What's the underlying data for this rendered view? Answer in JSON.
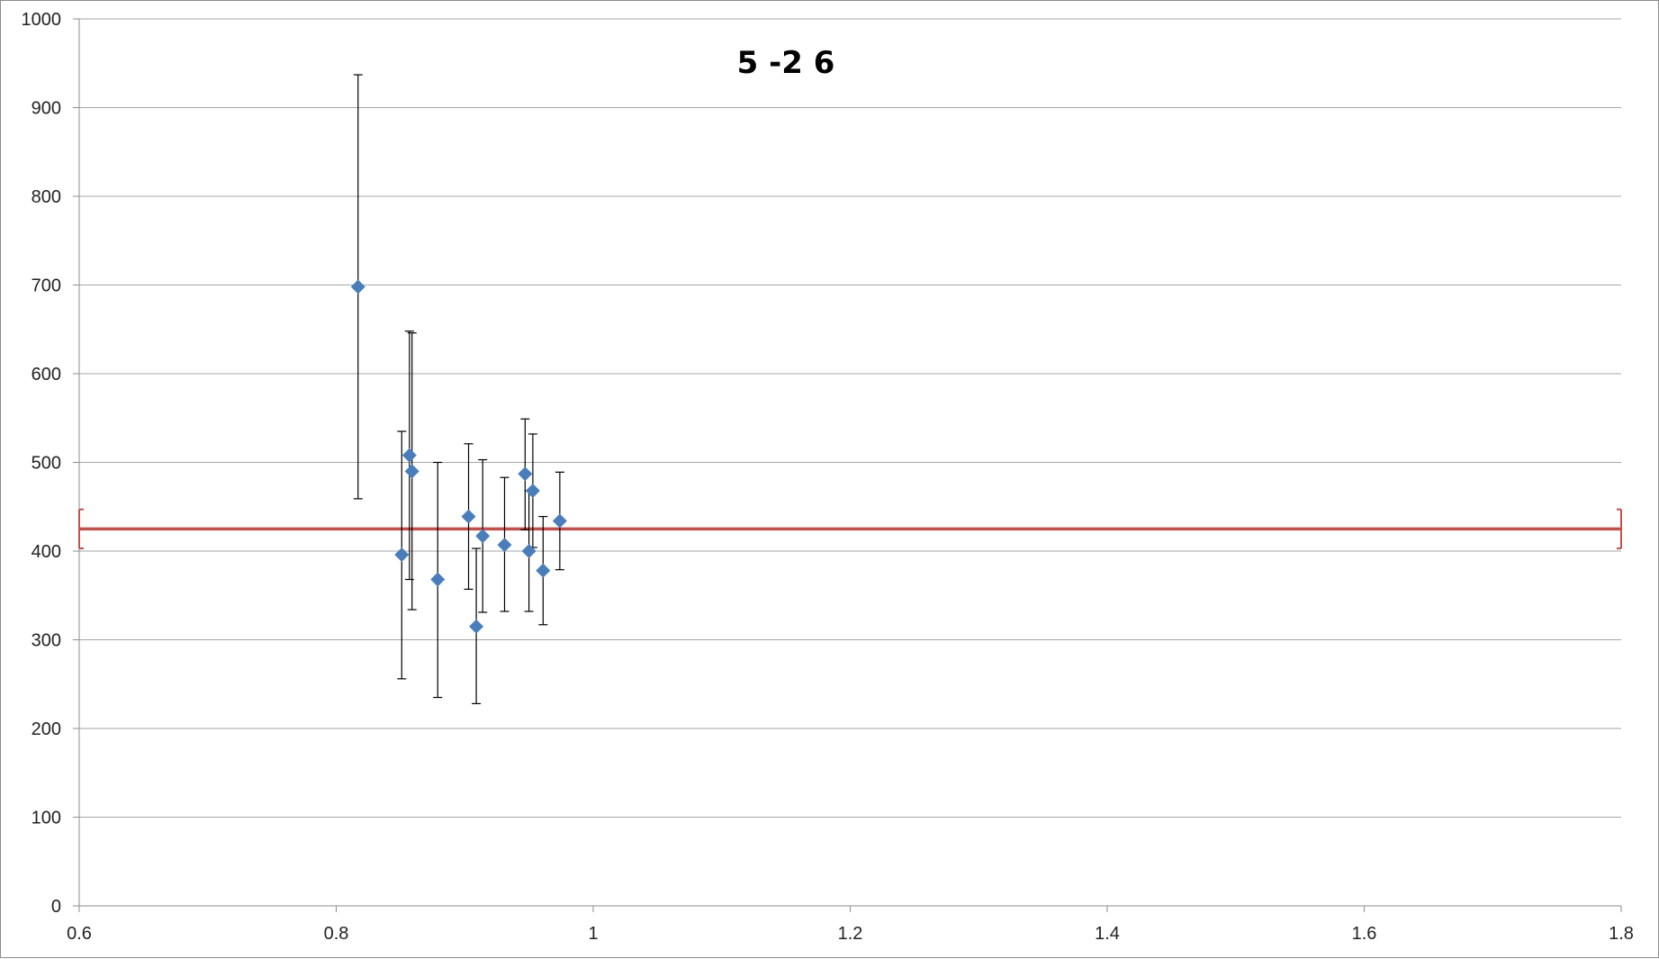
{
  "chart_data": {
    "type": "scatter",
    "title": "5 -2 6",
    "xlabel": "",
    "ylabel": "",
    "xlim": [
      0.6,
      1.8
    ],
    "ylim": [
      0,
      1000
    ],
    "x_ticks": [
      "0.6",
      "0.8",
      "1",
      "1.2",
      "1.4",
      "1.6",
      "1.8"
    ],
    "y_ticks": [
      "0",
      "100",
      "200",
      "300",
      "400",
      "500",
      "600",
      "700",
      "800",
      "900",
      "1000"
    ],
    "grid": true,
    "legend": "none",
    "series": [
      {
        "marker": "diamond",
        "color": "#4a7ebb",
        "error_bar_color": "#000000",
        "points": [
          {
            "x": 0.817,
            "y": 698,
            "y_low": 459,
            "y_high": 937
          },
          {
            "x": 0.851,
            "y": 396,
            "y_low": 256,
            "y_high": 535
          },
          {
            "x": 0.857,
            "y": 508,
            "y_low": 368,
            "y_high": 648
          },
          {
            "x": 0.859,
            "y": 490,
            "y_low": 334,
            "y_high": 646
          },
          {
            "x": 0.879,
            "y": 368,
            "y_low": 235,
            "y_high": 500
          },
          {
            "x": 0.903,
            "y": 439,
            "y_low": 357,
            "y_high": 521
          },
          {
            "x": 0.909,
            "y": 315,
            "y_low": 228,
            "y_high": 403
          },
          {
            "x": 0.914,
            "y": 417,
            "y_low": 331,
            "y_high": 503
          },
          {
            "x": 0.931,
            "y": 407,
            "y_low": 332,
            "y_high": 483
          },
          {
            "x": 0.947,
            "y": 487,
            "y_low": 424,
            "y_high": 549
          },
          {
            "x": 0.95,
            "y": 400,
            "y_low": 332,
            "y_high": 468
          },
          {
            "x": 0.953,
            "y": 468,
            "y_low": 404,
            "y_high": 532
          },
          {
            "x": 0.961,
            "y": 378,
            "y_low": 317,
            "y_high": 439
          },
          {
            "x": 0.974,
            "y": 434,
            "y_low": 379,
            "y_high": 489
          }
        ]
      }
    ],
    "reference_line": {
      "y": 425,
      "x_from": 0.6,
      "x_to": 1.8,
      "y_low": 403,
      "y_high": 447,
      "color": "#c0504d"
    }
  }
}
